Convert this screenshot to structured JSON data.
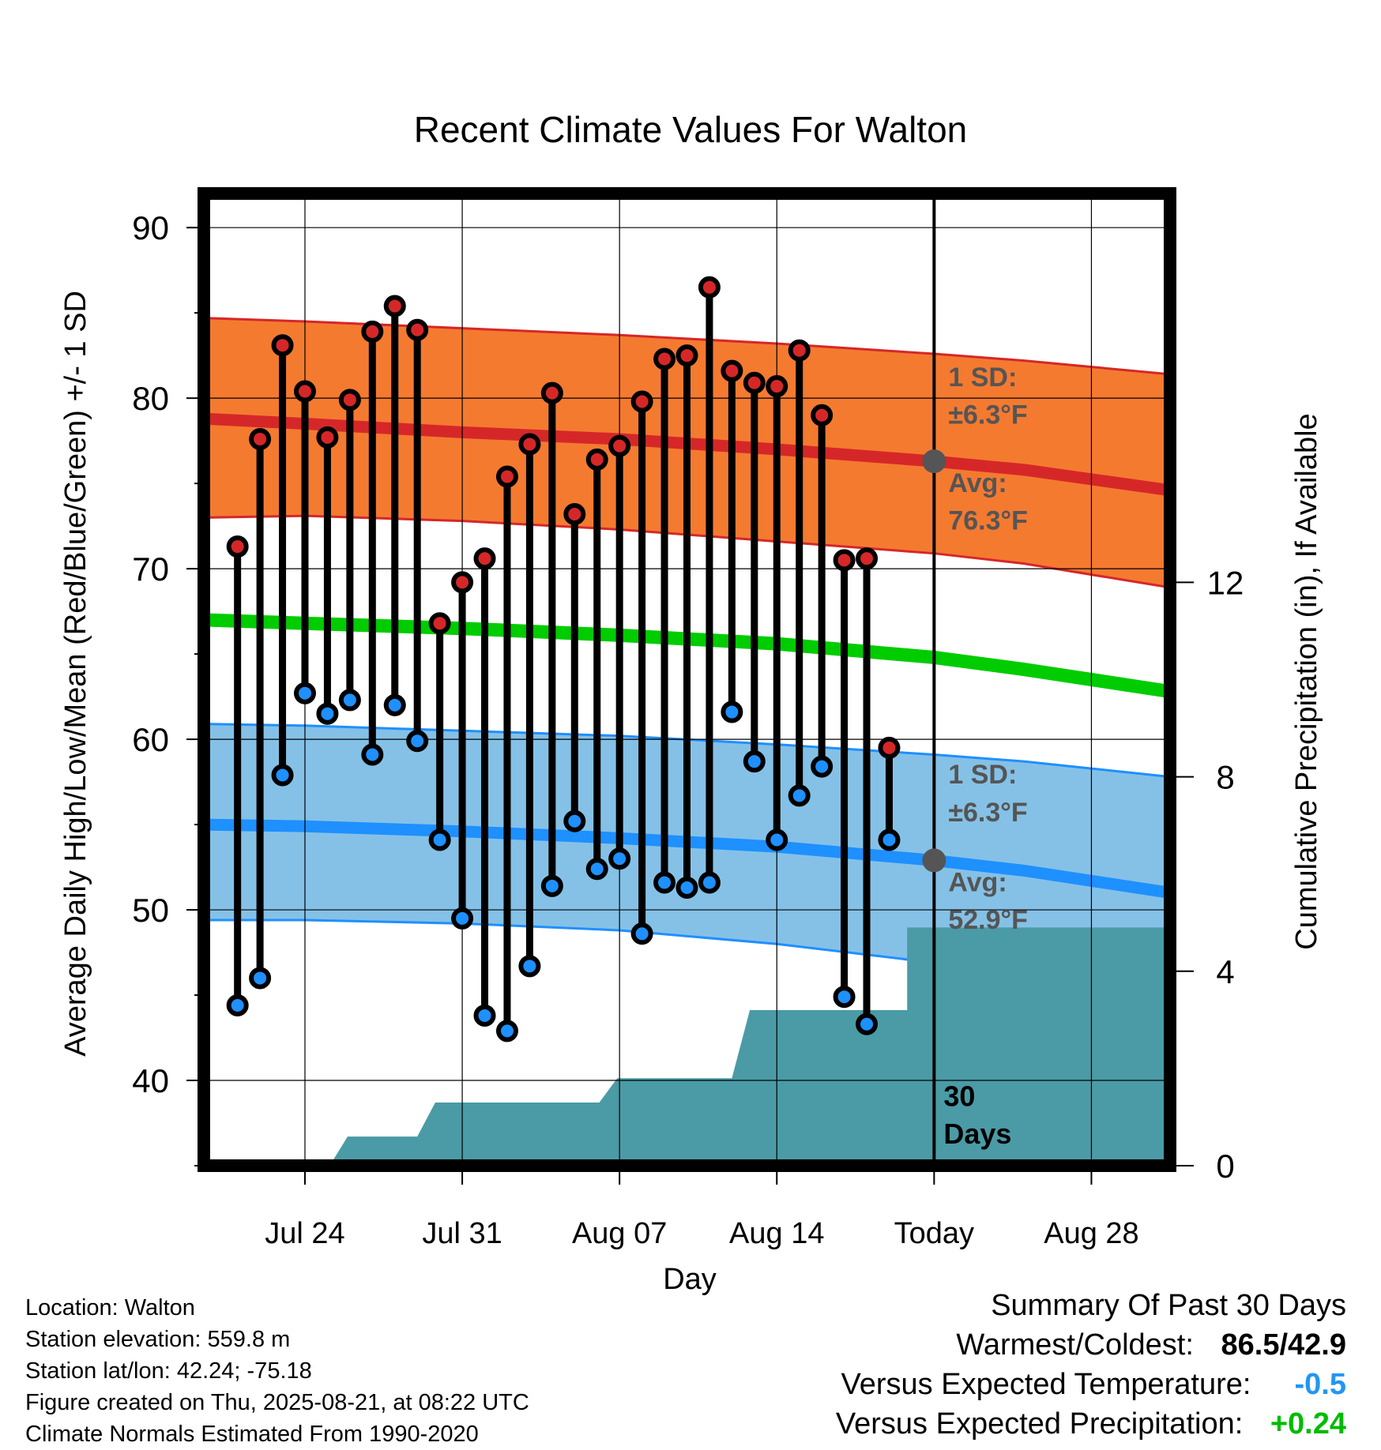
{
  "chart_data": {
    "type": "line",
    "title": "Recent Climate Values For Walton",
    "xlabel": "Day",
    "ylabel": "Average Daily High/Low/Mean (Red/Blue/Green) +/- 1 SD",
    "y2label": "Cumulative Precipitation (in), If Available",
    "ylim": [
      35,
      92
    ],
    "y2lim": [
      0,
      20
    ],
    "yticks": [
      "40",
      "50",
      "60",
      "70",
      "80",
      "90"
    ],
    "y2ticks": [
      "0",
      "4",
      "8",
      "12"
    ],
    "x_range_days": [
      -32.5,
      10.5
    ],
    "xticks": [
      {
        "day": -28,
        "label": "Jul 24"
      },
      {
        "day": -21,
        "label": "Jul 31"
      },
      {
        "day": -14,
        "label": "Aug 07"
      },
      {
        "day": -7,
        "label": "Aug 14"
      },
      {
        "day": 0,
        "label": "Today"
      },
      {
        "day": 7,
        "label": "Aug 28"
      }
    ],
    "grid": true,
    "colors": {
      "high": "#d62728",
      "high_band": "#f47a30",
      "low": "#1e90ff",
      "low_band": "#85c1e6",
      "mean": "#00cc00",
      "precip": "#4a9ba6",
      "avg_marker": "#555555",
      "annotation": "#555555"
    },
    "days": [
      -31,
      -30,
      -29,
      -28,
      -27,
      -26,
      -25,
      -24,
      -23,
      -22,
      -21,
      -20,
      -19,
      -18,
      -17,
      -16,
      -15,
      -14,
      -13,
      -12,
      -11,
      -10,
      -9,
      -8,
      -7,
      -6,
      -5,
      -4,
      -3,
      -2,
      -1
    ],
    "highs": [
      71.3,
      77.6,
      83.1,
      80.4,
      77.7,
      79.9,
      83.9,
      85.4,
      84.0,
      66.8,
      69.2,
      70.6,
      75.4,
      77.3,
      80.3,
      73.2,
      76.4,
      77.2,
      79.8,
      82.3,
      82.5,
      86.5,
      81.6,
      80.9,
      80.7,
      82.8,
      79.0,
      70.5,
      70.6,
      59.5,
      null
    ],
    "lows": [
      44.4,
      46.0,
      57.9,
      62.7,
      61.5,
      62.3,
      59.1,
      62.0,
      59.9,
      54.1,
      49.5,
      43.8,
      42.9,
      46.7,
      51.4,
      55.2,
      52.4,
      53.0,
      48.6,
      51.6,
      51.3,
      51.6,
      61.6,
      58.7,
      54.1,
      56.7,
      58.4,
      44.9,
      43.3,
      54.1,
      null
    ],
    "normal_high": {
      "days": [
        -32.5,
        -28,
        -21,
        -14,
        -7,
        0,
        4,
        10.5
      ],
      "values": [
        78.8,
        78.5,
        78.0,
        77.6,
        77.0,
        76.3,
        75.8,
        74.6
      ]
    },
    "normal_high_upper": {
      "days": [
        -32.5,
        -28,
        -21,
        -14,
        -7,
        0,
        4,
        10.5
      ],
      "values": [
        84.7,
        84.5,
        84.1,
        83.7,
        83.2,
        82.6,
        82.2,
        81.4
      ]
    },
    "normal_high_lower": {
      "days": [
        -32.5,
        -28,
        -21,
        -14,
        -7,
        0,
        4,
        10.5
      ],
      "values": [
        73.0,
        73.1,
        72.8,
        72.3,
        71.6,
        70.9,
        70.3,
        68.9
      ]
    },
    "normal_mean": {
      "days": [
        -32.5,
        -28,
        -21,
        -14,
        -7,
        0,
        4,
        10.5
      ],
      "values": [
        67.0,
        66.8,
        66.5,
        66.1,
        65.6,
        64.8,
        64.1,
        62.8
      ]
    },
    "normal_low": {
      "days": [
        -32.5,
        -28,
        -21,
        -14,
        -7,
        0,
        4,
        10.5
      ],
      "values": [
        55.0,
        54.9,
        54.6,
        54.2,
        53.7,
        52.9,
        52.3,
        51.0
      ]
    },
    "normal_low_upper": {
      "days": [
        -32.5,
        -28,
        -21,
        -14,
        -7,
        0,
        4,
        10.5
      ],
      "values": [
        60.9,
        60.8,
        60.5,
        60.2,
        59.7,
        59.1,
        58.7,
        57.8
      ]
    },
    "normal_low_lower": {
      "days": [
        -32.5,
        -28,
        -21,
        -14,
        -7,
        0,
        4,
        10.5
      ],
      "values": [
        49.4,
        49.4,
        49.2,
        48.8,
        48.0,
        46.9,
        45.9,
        44.3
      ]
    },
    "cumulative_precip": {
      "days": [
        -32.5,
        -26.9,
        -26.1,
        -23.0,
        -22.2,
        -19.0,
        -18.0,
        -14.9,
        -14.1,
        -9.0,
        -8.2,
        -3.0,
        -1.2,
        -1.2,
        10.5
      ],
      "values": [
        0,
        0,
        0.6,
        0.6,
        1.3,
        1.3,
        1.3,
        1.3,
        1.8,
        1.8,
        3.2,
        3.2,
        3.2,
        4.9,
        4.9
      ]
    },
    "annotations": {
      "high_sd_label": "1 SD:",
      "high_sd_value": "±6.3°F",
      "high_avg_label": "Avg:",
      "high_avg_value": "76.3°F",
      "low_sd_label": "1 SD:",
      "low_sd_value": "±6.3°F",
      "low_avg_label": "Avg:",
      "low_avg_value": "52.9°F",
      "days_label_1": "30",
      "days_label_2": "Days"
    },
    "today_avg_high": 76.3,
    "today_avg_low": 52.9
  },
  "station": {
    "location": "Location: Walton",
    "elevation": "Station elevation: 559.8 m",
    "latlon": "Station lat/lon: 42.24; -75.18",
    "created": "Figure created on Thu, 2025-08-21, at 08:22 UTC",
    "normals": "Climate Normals Estimated From 1990-2020"
  },
  "summary": {
    "title": "Summary Of Past 30 Days",
    "warm_cold_label": "Warmest/Coldest:",
    "warm_value": "86.5",
    "slash": "/",
    "cold_value": "42.9",
    "temp_label": "Versus Expected Temperature:",
    "temp_value": "-0.5",
    "temp_color": "#2196f3",
    "precip_label": "Versus Expected Precipitation:",
    "precip_value": "+0.24",
    "precip_color": "#00bb00"
  }
}
